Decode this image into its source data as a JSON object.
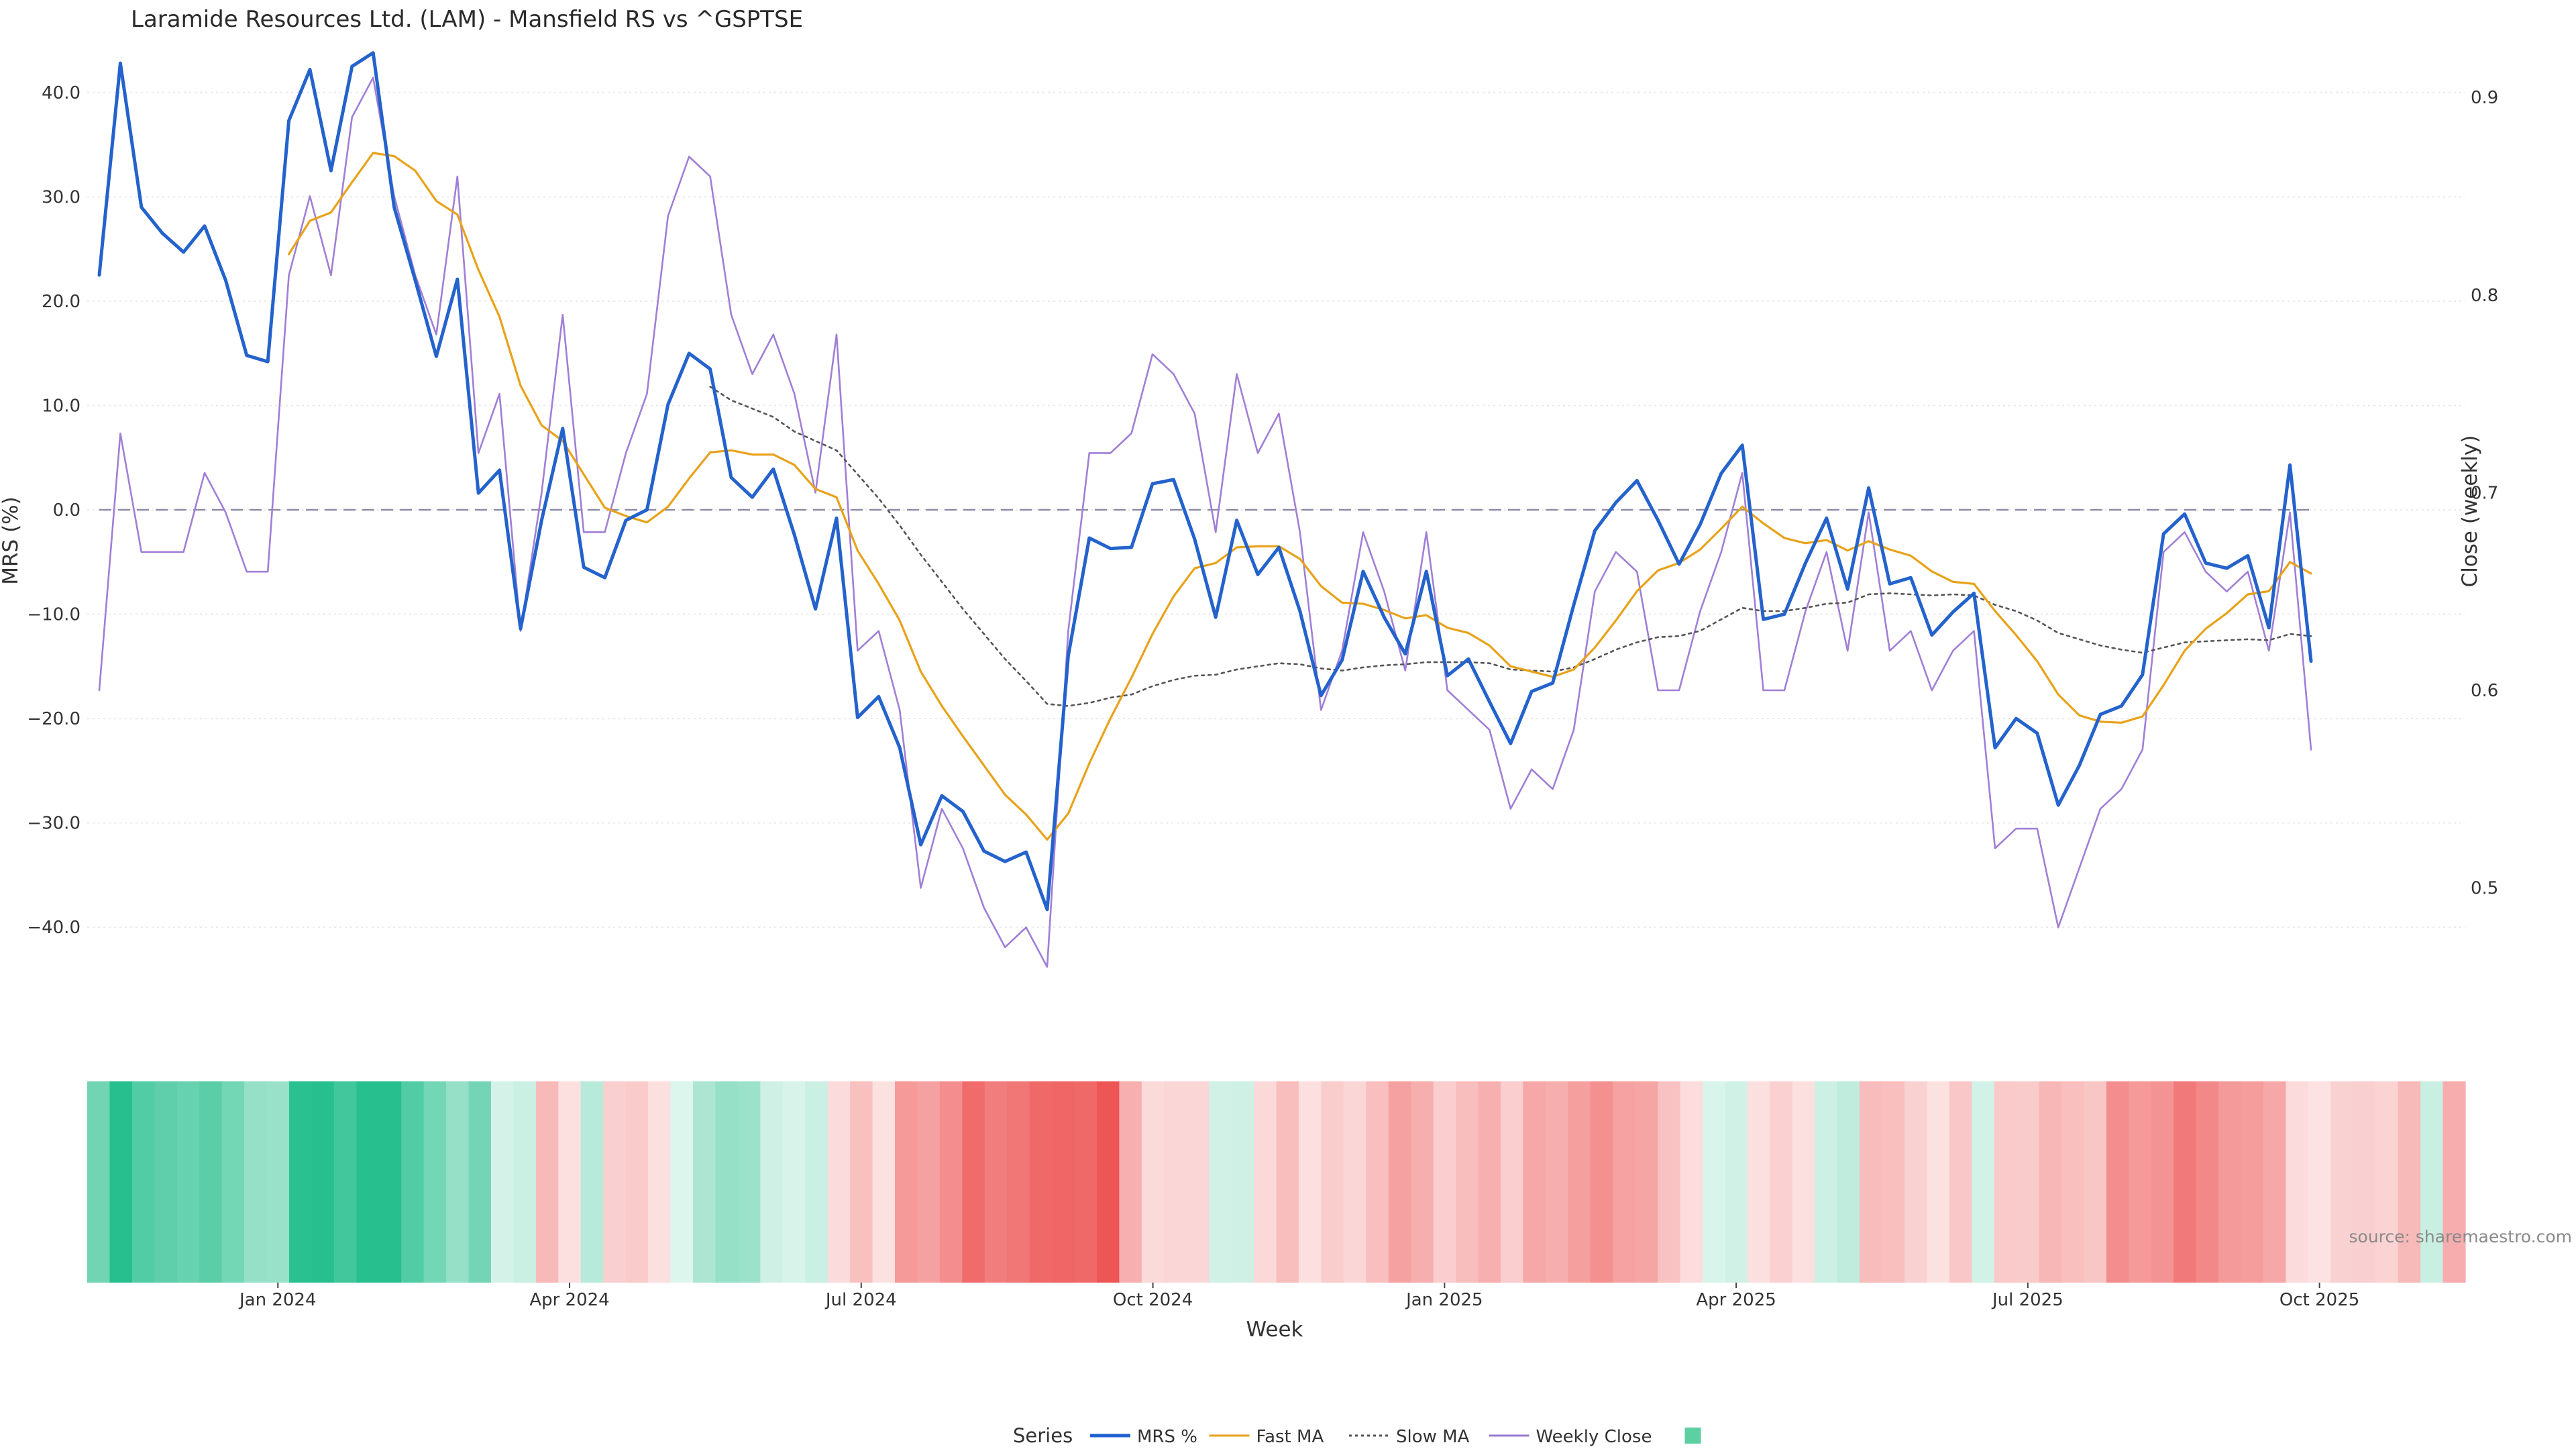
{
  "chart_data": {
    "type": "line",
    "title": "Laramide Resources Ltd. (LAM) - Mansfield RS vs ^GSPTSE",
    "xlabel": "Week",
    "ylabel": "MRS (%)",
    "y2label": "Close (weekly)",
    "ylim": [
      -45,
      45
    ],
    "y2lim": [
      0.4537,
      0.9289
    ],
    "y_ticks": [
      "40.0",
      "30.0",
      "20.0",
      "10.0",
      "0.0",
      "−10.0",
      "−20.0",
      "−30.0",
      "−40.0"
    ],
    "y_tick_values": [
      40,
      30,
      20,
      10,
      0,
      -10,
      -20,
      -30,
      -40
    ],
    "y2_ticks": [
      "0.9",
      "0.8",
      "0.7",
      "0.6",
      "0.5"
    ],
    "y2_tick_values": [
      0.9,
      0.8,
      0.7,
      0.6,
      0.5
    ],
    "x_ticks": [
      "Jan 2024",
      "Apr 2024",
      "Jul 2024",
      "Oct 2024",
      "Jan 2025",
      "Apr 2025",
      "Jul 2025",
      "Oct 2025"
    ],
    "x_tick_index": [
      8.5,
      21.5,
      34.5,
      47.5,
      60.5,
      73.5,
      86.5,
      99.5
    ],
    "zero_line": 0,
    "mrs": [
      22.5,
      42.8,
      29.0,
      26.5,
      24.7,
      27.2,
      22.0,
      14.8,
      14.2,
      37.3,
      42.2,
      32.5,
      42.5,
      43.8,
      29.0,
      22.0,
      14.7,
      22.1,
      1.6,
      3.8,
      -11.4,
      -1.0,
      7.8,
      -5.5,
      -6.5,
      -1.0,
      0.0,
      10.1,
      15.0,
      13.5,
      3.1,
      1.2,
      3.9,
      -2.4,
      -9.5,
      -0.8,
      -19.9,
      -17.9,
      -22.8,
      -32.1,
      -27.4,
      -28.9,
      -32.7,
      -33.7,
      -32.8,
      -38.3,
      -14.0,
      -2.7,
      -3.7,
      -3.6,
      2.5,
      2.9,
      -2.8,
      -10.3,
      -1.0,
      -6.2,
      -3.6,
      -9.7,
      -17.8,
      -14.4,
      -5.9,
      -10.3,
      -13.8,
      -5.9,
      -15.9,
      -14.3,
      -18.4,
      -22.4,
      -17.4,
      -16.6,
      -9.1,
      -2.0,
      0.7,
      2.8,
      -1.0,
      -5.2,
      -1.4,
      3.5,
      6.2,
      -10.5,
      -10.0,
      -5.1,
      -0.8,
      -7.6,
      2.1,
      -7.1,
      -6.5,
      -12.0,
      -9.8,
      -8.0,
      -22.8,
      -20.0,
      -21.4,
      -28.3,
      -24.5,
      -19.6,
      -18.8,
      -15.8,
      -2.3,
      -0.4,
      -5.1,
      -5.6,
      -4.4,
      -11.3,
      4.3,
      -14.5
    ],
    "fast_ma": [
      null,
      null,
      null,
      null,
      null,
      null,
      null,
      null,
      null,
      24.5,
      27.7,
      28.5,
      31.4,
      34.2,
      33.9,
      32.5,
      29.6,
      28.3,
      23.0,
      18.5,
      11.9,
      8.1,
      6.6,
      3.4,
      0.2,
      -0.6,
      -1.2,
      0.3,
      3.0,
      5.5,
      5.7,
      5.3,
      5.3,
      4.3,
      2.0,
      1.2,
      -3.9,
      -7.1,
      -10.6,
      -15.5,
      -18.8,
      -21.7,
      -24.5,
      -27.3,
      -29.2,
      -31.6,
      -29.1,
      -24.3,
      -20.0,
      -16.1,
      -11.9,
      -8.3,
      -5.6,
      -5.1,
      -3.6,
      -3.5,
      -3.5,
      -4.7,
      -7.3,
      -8.9,
      -9.0,
      -9.6,
      -10.4,
      -10.1,
      -11.3,
      -11.8,
      -13.0,
      -15.0,
      -15.5,
      -16.0,
      -15.3,
      -13.2,
      -10.6,
      -7.8,
      -5.8,
      -5.1,
      -3.8,
      -1.8,
      0.3,
      -1.3,
      -2.7,
      -3.2,
      -2.9,
      -3.9,
      -3.0,
      -3.8,
      -4.4,
      -5.9,
      -6.9,
      -7.1,
      -9.7,
      -12.0,
      -14.5,
      -17.7,
      -19.7,
      -20.3,
      -20.4,
      -19.8,
      -16.8,
      -13.5,
      -11.4,
      -9.9,
      -8.1,
      -7.8,
      -5.0,
      -6.1
    ],
    "slow_ma": [
      null,
      null,
      null,
      null,
      null,
      null,
      null,
      null,
      null,
      null,
      null,
      null,
      null,
      null,
      null,
      null,
      null,
      null,
      null,
      null,
      null,
      null,
      null,
      null,
      null,
      null,
      null,
      null,
      null,
      11.8,
      10.5,
      9.7,
      8.9,
      7.5,
      6.6,
      5.7,
      3.4,
      1.1,
      -1.5,
      -4.3,
      -6.9,
      -9.5,
      -11.9,
      -14.3,
      -16.4,
      -18.6,
      -18.8,
      -18.5,
      -18.0,
      -17.7,
      -16.9,
      -16.3,
      -15.9,
      -15.8,
      -15.3,
      -15.0,
      -14.7,
      -14.8,
      -15.2,
      -15.4,
      -15.1,
      -14.9,
      -14.8,
      -14.6,
      -14.6,
      -14.6,
      -14.7,
      -15.3,
      -15.4,
      -15.5,
      -15.1,
      -14.3,
      -13.4,
      -12.7,
      -12.2,
      -12.1,
      -11.6,
      -10.5,
      -9.4,
      -9.7,
      -9.7,
      -9.4,
      -9.0,
      -8.9,
      -8.1,
      -8.0,
      -8.1,
      -8.2,
      -8.1,
      -8.2,
      -9.1,
      -9.7,
      -10.6,
      -11.8,
      -12.4,
      -13.0,
      -13.4,
      -13.7,
      -13.2,
      -12.7,
      -12.6,
      -12.5,
      -12.4,
      -12.5,
      -11.9,
      -12.1
    ],
    "weekly_close": [
      0.6,
      0.73,
      0.67,
      0.67,
      0.67,
      0.71,
      0.69,
      0.66,
      0.66,
      0.81,
      0.85,
      0.81,
      0.89,
      0.91,
      0.85,
      0.81,
      0.78,
      0.86,
      0.72,
      0.75,
      0.63,
      0.7,
      0.79,
      0.68,
      0.68,
      0.72,
      0.75,
      0.84,
      0.87,
      0.86,
      0.79,
      0.76,
      0.78,
      0.75,
      0.7,
      0.78,
      0.62,
      0.63,
      0.59,
      0.5,
      0.54,
      0.52,
      0.49,
      0.47,
      0.48,
      0.46,
      0.63,
      0.72,
      0.72,
      0.73,
      0.77,
      0.76,
      0.74,
      0.68,
      0.76,
      0.72,
      0.74,
      0.68,
      0.59,
      0.62,
      0.68,
      0.65,
      0.61,
      0.68,
      0.6,
      0.59,
      0.58,
      0.54,
      0.56,
      0.55,
      0.58,
      0.65,
      0.67,
      0.66,
      0.6,
      0.6,
      0.64,
      0.67,
      0.71,
      0.6,
      0.6,
      0.64,
      0.67,
      0.62,
      0.69,
      0.62,
      0.63,
      0.6,
      0.62,
      0.63,
      0.52,
      0.53,
      0.53,
      0.48,
      0.51,
      0.54,
      0.55,
      0.57,
      0.67,
      0.68,
      0.66,
      0.65,
      0.66,
      0.62,
      0.69,
      0.57
    ],
    "legend": {
      "title": "Series",
      "placement": "bottom-center",
      "entries": [
        {
          "name": "MRS %",
          "color": "#2060d0",
          "style": "solid"
        },
        {
          "name": "Fast MA",
          "color": "#e8a21a",
          "style": "solid"
        },
        {
          "name": "Slow MA",
          "color": "#555555",
          "style": "dotted"
        },
        {
          "name": "Weekly Close",
          "color": "#9a7bd0",
          "style": "solid"
        },
        {
          "name": "",
          "color": "#5ccfa3",
          "style": "swatch"
        }
      ]
    },
    "colors": {
      "mrs": "#2462cc",
      "fast_ma": "#e8a21a",
      "slow_ma": "#555555",
      "weekly_close": "#a07fd6",
      "zero_line": "#8c8ca8",
      "grid": "#e9e9e9",
      "positive": "#27bf8d",
      "negative": "#ee5555"
    },
    "heatmap_note": "bottom strip colors each week by MRS (green positive, red negative)",
    "source": "source: sharemaestro.com"
  }
}
